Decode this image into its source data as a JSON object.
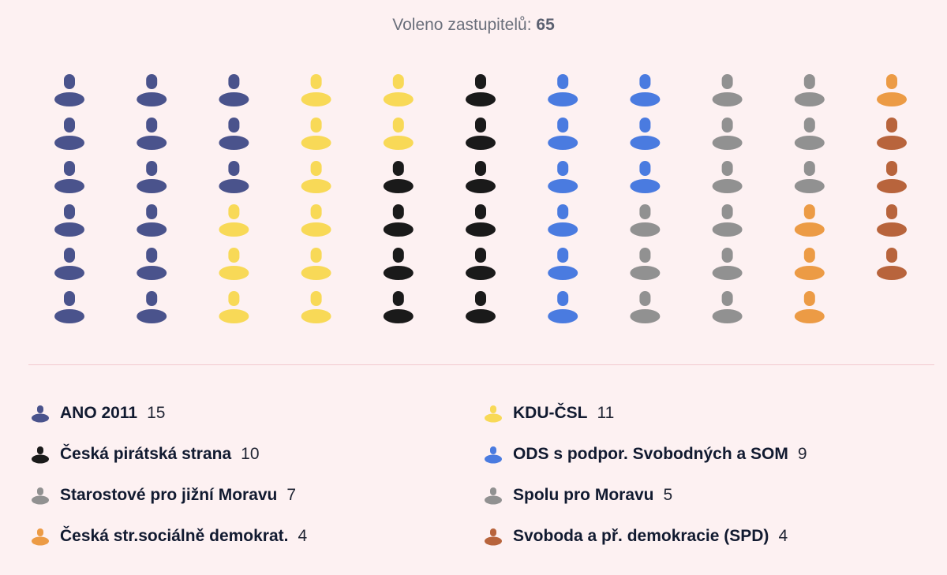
{
  "header": {
    "label": "Voleno zastupitelů:",
    "total": "65"
  },
  "chart_data": {
    "type": "seat-chart",
    "series": [
      {
        "name": "ANO 2011",
        "value": 15,
        "color": "#4a538c"
      },
      {
        "name": "KDU-ČSL",
        "value": 11,
        "color": "#f8d957"
      },
      {
        "name": "Česká pirátská strana",
        "value": 10,
        "color": "#1a1a1a"
      },
      {
        "name": "ODS s podpor. Svobodných a SOM",
        "value": 9,
        "color": "#4a7be0"
      },
      {
        "name": "Starostové pro jižní Moravu",
        "value": 7,
        "color": "#919191"
      },
      {
        "name": "Spolu pro Moravu",
        "value": 5,
        "color": "#919191"
      },
      {
        "name": "Česká str.sociálně demokrat.",
        "value": 4,
        "color": "#ec9b45"
      },
      {
        "name": "Svoboda a př. demokracie (SPD)",
        "value": 4,
        "color": "#b8643c"
      }
    ]
  },
  "legend": [
    {
      "name": "ANO 2011",
      "count": "15",
      "color": "#4a538c"
    },
    {
      "name": "KDU-ČSL",
      "count": "11",
      "color": "#f8d957"
    },
    {
      "name": "Česká pirátská strana",
      "count": "10",
      "color": "#1a1a1a"
    },
    {
      "name": "ODS s podpor. Svobodných a SOM",
      "count": "9",
      "color": "#4a7be0"
    },
    {
      "name": "Starostové pro jižní Moravu",
      "count": "7",
      "color": "#919191"
    },
    {
      "name": "Spolu pro Moravu",
      "count": "5",
      "color": "#919191"
    },
    {
      "name": "Česká str.sociálně demokrat.",
      "count": "4",
      "color": "#ec9b45"
    },
    {
      "name": "Svoboda a př. demokracie (SPD)",
      "count": "4",
      "color": "#b8643c"
    }
  ]
}
